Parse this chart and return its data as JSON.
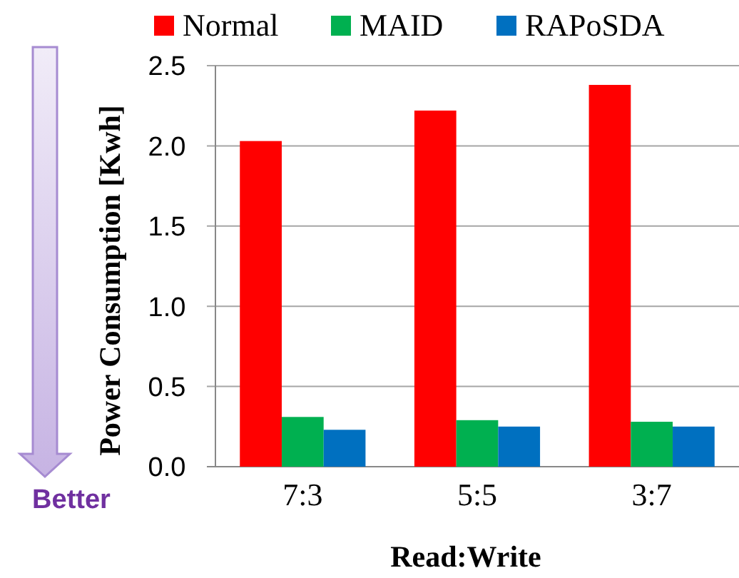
{
  "chart_data": {
    "type": "bar",
    "xlabel": "Read:Write",
    "ylabel": "Power Consumption [Kwh]",
    "categories": [
      "7:3",
      "5:5",
      "3:7"
    ],
    "series": [
      {
        "name": "Normal",
        "color": "#ff0000",
        "values": [
          2.03,
          2.22,
          2.38
        ]
      },
      {
        "name": "MAID",
        "color": "#00b050",
        "values": [
          0.31,
          0.29,
          0.28
        ]
      },
      {
        "name": "RAPoSDA",
        "color": "#0070c0",
        "values": [
          0.23,
          0.25,
          0.25
        ]
      }
    ],
    "ylim": [
      0,
      2.5
    ],
    "yticks": [
      {
        "value": 0,
        "label": "0.0"
      },
      {
        "value": 0.5,
        "label": "0.5"
      },
      {
        "value": 1,
        "label": "1.0"
      },
      {
        "value": 1.5,
        "label": "1.5"
      },
      {
        "value": 2,
        "label": "2.0"
      },
      {
        "value": 2.5,
        "label": "2.5"
      }
    ],
    "grid": "y",
    "legend": "top",
    "annotations": [
      "Better"
    ]
  }
}
